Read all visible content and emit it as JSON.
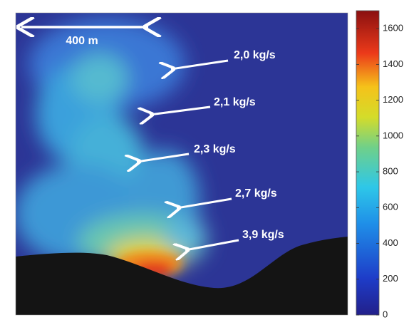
{
  "chart_data": {
    "type": "image",
    "scale_label": "400 m",
    "annotations": [
      "2,0 kg/s",
      "2,1 kg/s",
      "2,3 kg/s",
      "2,7 kg/s",
      "3,9 kg/s"
    ],
    "colorbar": {
      "clim": [
        0,
        1700
      ],
      "ticks": [
        0,
        200,
        400,
        600,
        800,
        1000,
        1200,
        1400,
        1600
      ]
    }
  }
}
